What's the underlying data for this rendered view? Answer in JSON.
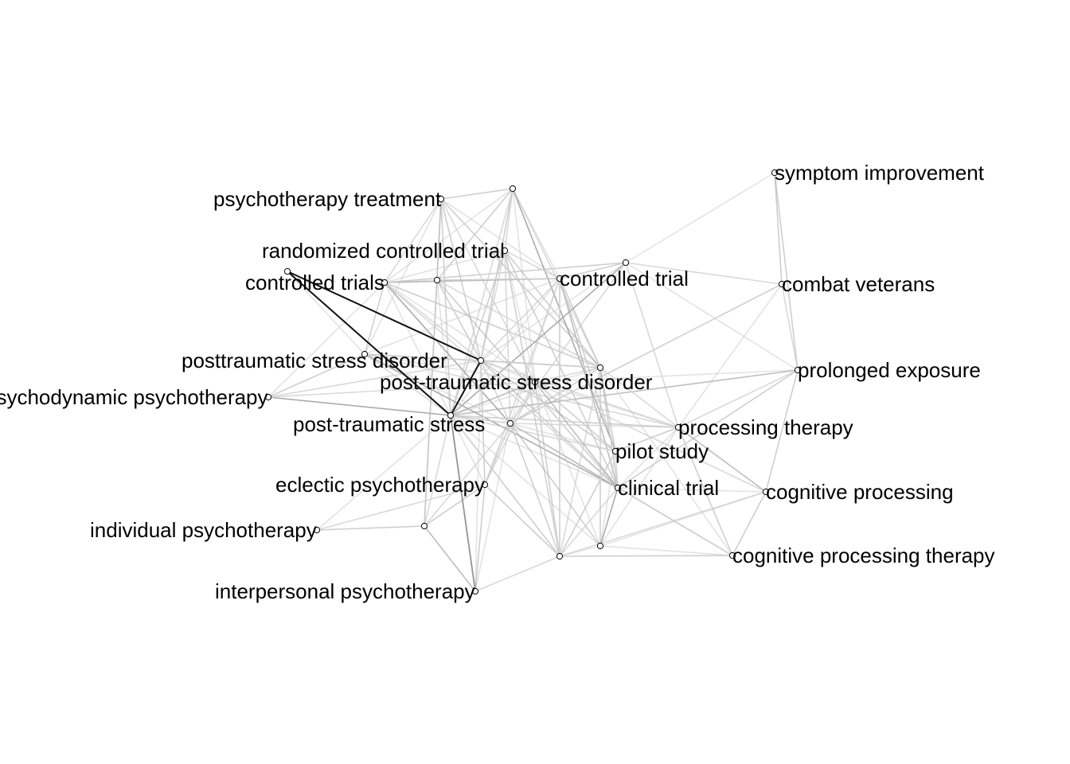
{
  "diagram": {
    "type": "network-graph",
    "nodes": [
      {
        "id": "symptom-improvement",
        "label": "symptom improvement"
      },
      {
        "id": "psychotherapy-treatment",
        "label": "psychotherapy treatment"
      },
      {
        "id": "n-top",
        "label": ""
      },
      {
        "id": "randomized-controlled-trial",
        "label": "randomized controlled trial"
      },
      {
        "id": "controlled-trials",
        "label": "controlled trials"
      },
      {
        "id": "n-ct-left",
        "label": ""
      },
      {
        "id": "n-ct-mid",
        "label": ""
      },
      {
        "id": "controlled-trial",
        "label": "controlled trial"
      },
      {
        "id": "n-ctrl-top",
        "label": ""
      },
      {
        "id": "combat-veterans",
        "label": "combat veterans"
      },
      {
        "id": "posttraumatic-stress-disorder",
        "label": "posttraumatic stress disorder"
      },
      {
        "id": "n-pts-right",
        "label": ""
      },
      {
        "id": "post-traumatic-stress-disorder",
        "label": "post-traumatic stress disorder"
      },
      {
        "id": "n-ptsd-center",
        "label": ""
      },
      {
        "id": "prolonged-exposure",
        "label": "prolonged exposure"
      },
      {
        "id": "psychodynamic-psychotherapy",
        "label": "psychodynamic psychotherapy"
      },
      {
        "id": "post-traumatic-stress",
        "label": "post-traumatic stress"
      },
      {
        "id": "n-pts-end",
        "label": ""
      },
      {
        "id": "processing-therapy",
        "label": "processing therapy"
      },
      {
        "id": "pilot-study",
        "label": "pilot study"
      },
      {
        "id": "eclectic-psychotherapy",
        "label": "eclectic psychotherapy"
      },
      {
        "id": "clinical-trial",
        "label": "clinical trial"
      },
      {
        "id": "cognitive-processing",
        "label": "cognitive processing"
      },
      {
        "id": "individual-psychotherapy",
        "label": "individual psychotherapy"
      },
      {
        "id": "n-ecl-low",
        "label": ""
      },
      {
        "id": "n-bottom-a",
        "label": ""
      },
      {
        "id": "n-bottom-b",
        "label": ""
      },
      {
        "id": "cognitive-processing-therapy",
        "label": "cognitive processing therapy"
      },
      {
        "id": "interpersonal-psychotherapy",
        "label": "interpersonal psychotherapy"
      }
    ],
    "edges": [
      [
        "psychotherapy-treatment",
        "n-top"
      ],
      [
        "psychotherapy-treatment",
        "controlled-trials"
      ],
      [
        "psychotherapy-treatment",
        "post-traumatic-stress"
      ],
      [
        "psychotherapy-treatment",
        "posttraumatic-stress-disorder"
      ],
      [
        "psychotherapy-treatment",
        "n-ptsd-center"
      ],
      [
        "psychotherapy-treatment",
        "n-pts-right"
      ],
      [
        "psychotherapy-treatment",
        "controlled-trial"
      ],
      [
        "psychotherapy-treatment",
        "n-ecl-low"
      ],
      [
        "psychotherapy-treatment",
        "post-traumatic-stress-disorder"
      ],
      [
        "n-top",
        "controlled-trials"
      ],
      [
        "n-top",
        "post-traumatic-stress"
      ],
      [
        "n-top",
        "n-pts-right"
      ],
      [
        "n-top",
        "controlled-trial"
      ],
      [
        "n-top",
        "post-traumatic-stress-disorder"
      ],
      [
        "n-top",
        "pilot-study"
      ],
      [
        "n-top",
        "n-ptsd-center"
      ],
      [
        "n-top",
        "randomized-controlled-trial"
      ],
      [
        "n-top",
        "n-ct-mid"
      ],
      [
        "randomized-controlled-trial",
        "controlled-trials"
      ],
      [
        "randomized-controlled-trial",
        "n-pts-right"
      ],
      [
        "randomized-controlled-trial",
        "post-traumatic-stress"
      ],
      [
        "randomized-controlled-trial",
        "post-traumatic-stress-disorder"
      ],
      [
        "randomized-controlled-trial",
        "controlled-trial"
      ],
      [
        "randomized-controlled-trial",
        "clinical-trial"
      ],
      [
        "randomized-controlled-trial",
        "n-ptsd-center"
      ],
      [
        "randomized-controlled-trial",
        "n-pts-end"
      ],
      [
        "randomized-controlled-trial",
        "n-bottom-a"
      ],
      [
        "controlled-trials",
        "n-ct-mid"
      ],
      [
        "controlled-trials",
        "controlled-trial"
      ],
      [
        "controlled-trials",
        "posttraumatic-stress-disorder"
      ],
      [
        "controlled-trials",
        "post-traumatic-stress"
      ],
      [
        "controlled-trials",
        "n-pts-right"
      ],
      [
        "controlled-trials",
        "post-traumatic-stress-disorder"
      ],
      [
        "controlled-trials",
        "n-ptsd-center"
      ],
      [
        "controlled-trials",
        "clinical-trial"
      ],
      [
        "controlled-trials",
        "n-pts-end"
      ],
      [
        "n-ct-left",
        "posttraumatic-stress-disorder"
      ],
      [
        "n-ct-left",
        "post-traumatic-stress"
      ],
      [
        "n-ct-mid",
        "controlled-trial"
      ],
      [
        "n-ct-mid",
        "post-traumatic-stress"
      ],
      [
        "n-ct-mid",
        "post-traumatic-stress-disorder"
      ],
      [
        "n-ct-mid",
        "n-pts-right"
      ],
      [
        "n-ct-mid",
        "clinical-trial"
      ],
      [
        "n-ct-mid",
        "n-ecl-low"
      ],
      [
        "controlled-trial",
        "n-ctrl-top"
      ],
      [
        "controlled-trial",
        "post-traumatic-stress"
      ],
      [
        "controlled-trial",
        "n-pts-right"
      ],
      [
        "controlled-trial",
        "post-traumatic-stress-disorder"
      ],
      [
        "controlled-trial",
        "posttraumatic-stress-disorder"
      ],
      [
        "controlled-trial",
        "clinical-trial"
      ],
      [
        "controlled-trial",
        "pilot-study"
      ],
      [
        "controlled-trial",
        "n-pts-end"
      ],
      [
        "controlled-trial",
        "eclectic-psychotherapy"
      ],
      [
        "controlled-trial",
        "n-bottom-a"
      ],
      [
        "n-ctrl-top",
        "symptom-improvement"
      ],
      [
        "n-ctrl-top",
        "combat-veterans"
      ],
      [
        "n-ctrl-top",
        "post-traumatic-stress"
      ],
      [
        "n-ctrl-top",
        "n-pts-right"
      ],
      [
        "n-ctrl-top",
        "processing-therapy"
      ],
      [
        "n-ctrl-top",
        "controlled-trials"
      ],
      [
        "n-ctrl-top",
        "prolonged-exposure"
      ],
      [
        "n-ctrl-top",
        "n-pts-end"
      ],
      [
        "symptom-improvement",
        "combat-veterans"
      ],
      [
        "symptom-improvement",
        "prolonged-exposure"
      ],
      [
        "combat-veterans",
        "prolonged-exposure"
      ],
      [
        "combat-veterans",
        "n-pts-end"
      ],
      [
        "combat-veterans",
        "processing-therapy"
      ],
      [
        "prolonged-exposure",
        "processing-therapy"
      ],
      [
        "prolonged-exposure",
        "cognitive-processing"
      ],
      [
        "prolonged-exposure",
        "n-ptsd-center"
      ],
      [
        "prolonged-exposure",
        "post-traumatic-stress"
      ],
      [
        "prolonged-exposure",
        "clinical-trial"
      ],
      [
        "posttraumatic-stress-disorder",
        "n-pts-right"
      ],
      [
        "posttraumatic-stress-disorder",
        "post-traumatic-stress"
      ],
      [
        "posttraumatic-stress-disorder",
        "post-traumatic-stress-disorder"
      ],
      [
        "posttraumatic-stress-disorder",
        "n-ptsd-center"
      ],
      [
        "posttraumatic-stress-disorder",
        "processing-therapy"
      ],
      [
        "posttraumatic-stress-disorder",
        "clinical-trial"
      ],
      [
        "posttraumatic-stress-disorder",
        "n-pts-end"
      ],
      [
        "n-pts-right",
        "post-traumatic-stress"
      ],
      [
        "n-pts-right",
        "post-traumatic-stress-disorder"
      ],
      [
        "n-pts-right",
        "n-ptsd-center"
      ],
      [
        "n-pts-right",
        "processing-therapy"
      ],
      [
        "n-pts-right",
        "pilot-study"
      ],
      [
        "n-pts-right",
        "clinical-trial"
      ],
      [
        "n-pts-right",
        "n-pts-end"
      ],
      [
        "n-pts-right",
        "eclectic-psychotherapy"
      ],
      [
        "n-pts-right",
        "interpersonal-psychotherapy"
      ],
      [
        "n-pts-right",
        "psychodynamic-psychotherapy"
      ],
      [
        "n-pts-right",
        "n-ct-left"
      ],
      [
        "post-traumatic-stress",
        "post-traumatic-stress-disorder"
      ],
      [
        "post-traumatic-stress",
        "n-ptsd-center"
      ],
      [
        "post-traumatic-stress",
        "n-pts-end"
      ],
      [
        "post-traumatic-stress",
        "clinical-trial"
      ],
      [
        "post-traumatic-stress",
        "pilot-study"
      ],
      [
        "post-traumatic-stress",
        "processing-therapy"
      ],
      [
        "post-traumatic-stress",
        "eclectic-psychotherapy"
      ],
      [
        "post-traumatic-stress",
        "interpersonal-psychotherapy"
      ],
      [
        "post-traumatic-stress",
        "psychodynamic-psychotherapy"
      ],
      [
        "post-traumatic-stress",
        "individual-psychotherapy"
      ],
      [
        "post-traumatic-stress",
        "n-ecl-low"
      ],
      [
        "post-traumatic-stress",
        "n-bottom-a"
      ],
      [
        "post-traumatic-stress",
        "n-bottom-b"
      ],
      [
        "post-traumatic-stress-disorder",
        "n-ptsd-center"
      ],
      [
        "post-traumatic-stress-disorder",
        "clinical-trial"
      ],
      [
        "post-traumatic-stress-disorder",
        "pilot-study"
      ],
      [
        "post-traumatic-stress-disorder",
        "processing-therapy"
      ],
      [
        "post-traumatic-stress-disorder",
        "n-pts-end"
      ],
      [
        "post-traumatic-stress-disorder",
        "cognitive-processing-therapy"
      ],
      [
        "post-traumatic-stress-disorder",
        "n-bottom-a"
      ],
      [
        "post-traumatic-stress-disorder",
        "n-bottom-b"
      ],
      [
        "n-ptsd-center",
        "n-pts-end"
      ],
      [
        "n-ptsd-center",
        "clinical-trial"
      ],
      [
        "n-ptsd-center",
        "pilot-study"
      ],
      [
        "n-ptsd-center",
        "processing-therapy"
      ],
      [
        "n-ptsd-center",
        "eclectic-psychotherapy"
      ],
      [
        "n-ptsd-center",
        "n-bottom-a"
      ],
      [
        "n-ptsd-center",
        "n-bottom-b"
      ],
      [
        "n-ptsd-center",
        "cognitive-processing"
      ],
      [
        "n-pts-end",
        "clinical-trial"
      ],
      [
        "n-pts-end",
        "pilot-study"
      ],
      [
        "n-pts-end",
        "processing-therapy"
      ],
      [
        "n-pts-end",
        "eclectic-psychotherapy"
      ],
      [
        "n-pts-end",
        "interpersonal-psychotherapy"
      ],
      [
        "n-pts-end",
        "n-ecl-low"
      ],
      [
        "n-pts-end",
        "n-bottom-a"
      ],
      [
        "n-pts-end",
        "n-bottom-b"
      ],
      [
        "n-pts-end",
        "cognitive-processing-therapy"
      ],
      [
        "psychodynamic-psychotherapy",
        "posttraumatic-stress-disorder"
      ],
      [
        "psychodynamic-psychotherapy",
        "controlled-trials"
      ],
      [
        "psychodynamic-psychotherapy",
        "n-ptsd-center"
      ],
      [
        "processing-therapy",
        "pilot-study"
      ],
      [
        "processing-therapy",
        "clinical-trial"
      ],
      [
        "processing-therapy",
        "cognitive-processing"
      ],
      [
        "processing-therapy",
        "cognitive-processing-therapy"
      ],
      [
        "processing-therapy",
        "n-bottom-b"
      ],
      [
        "pilot-study",
        "clinical-trial"
      ],
      [
        "pilot-study",
        "n-bottom-a"
      ],
      [
        "pilot-study",
        "n-bottom-b"
      ],
      [
        "clinical-trial",
        "n-bottom-a"
      ],
      [
        "clinical-trial",
        "n-bottom-b"
      ],
      [
        "clinical-trial",
        "cognitive-processing"
      ],
      [
        "clinical-trial",
        "cognitive-processing-therapy"
      ],
      [
        "cognitive-processing",
        "cognitive-processing-therapy"
      ],
      [
        "cognitive-processing",
        "n-bottom-b"
      ],
      [
        "cognitive-processing",
        "n-bottom-a"
      ],
      [
        "eclectic-psychotherapy",
        "n-ecl-low"
      ],
      [
        "eclectic-psychotherapy",
        "interpersonal-psychotherapy"
      ],
      [
        "eclectic-psychotherapy",
        "individual-psychotherapy"
      ],
      [
        "eclectic-psychotherapy",
        "n-bottom-a"
      ],
      [
        "n-bottom-a",
        "n-bottom-b"
      ],
      [
        "n-bottom-a",
        "interpersonal-psychotherapy"
      ],
      [
        "n-bottom-a",
        "cognitive-processing-therapy"
      ],
      [
        "n-bottom-b",
        "cognitive-processing-therapy"
      ],
      [
        "interpersonal-psychotherapy",
        "n-ecl-low"
      ],
      [
        "individual-psychotherapy",
        "n-ecl-low"
      ]
    ],
    "dark_edges": [
      [
        "post-traumatic-stress",
        "n-pts-right"
      ],
      [
        "n-pts-right",
        "n-ct-left"
      ],
      [
        "n-ct-left",
        "post-traumatic-stress"
      ],
      [
        "post-traumatic-stress",
        "interpersonal-psychotherapy"
      ]
    ],
    "colors": {
      "edge": "#cccccc",
      "edge_dark": "#111111",
      "node_fill": "#ffffff",
      "node_stroke": "#000000",
      "label": "#000000"
    }
  }
}
